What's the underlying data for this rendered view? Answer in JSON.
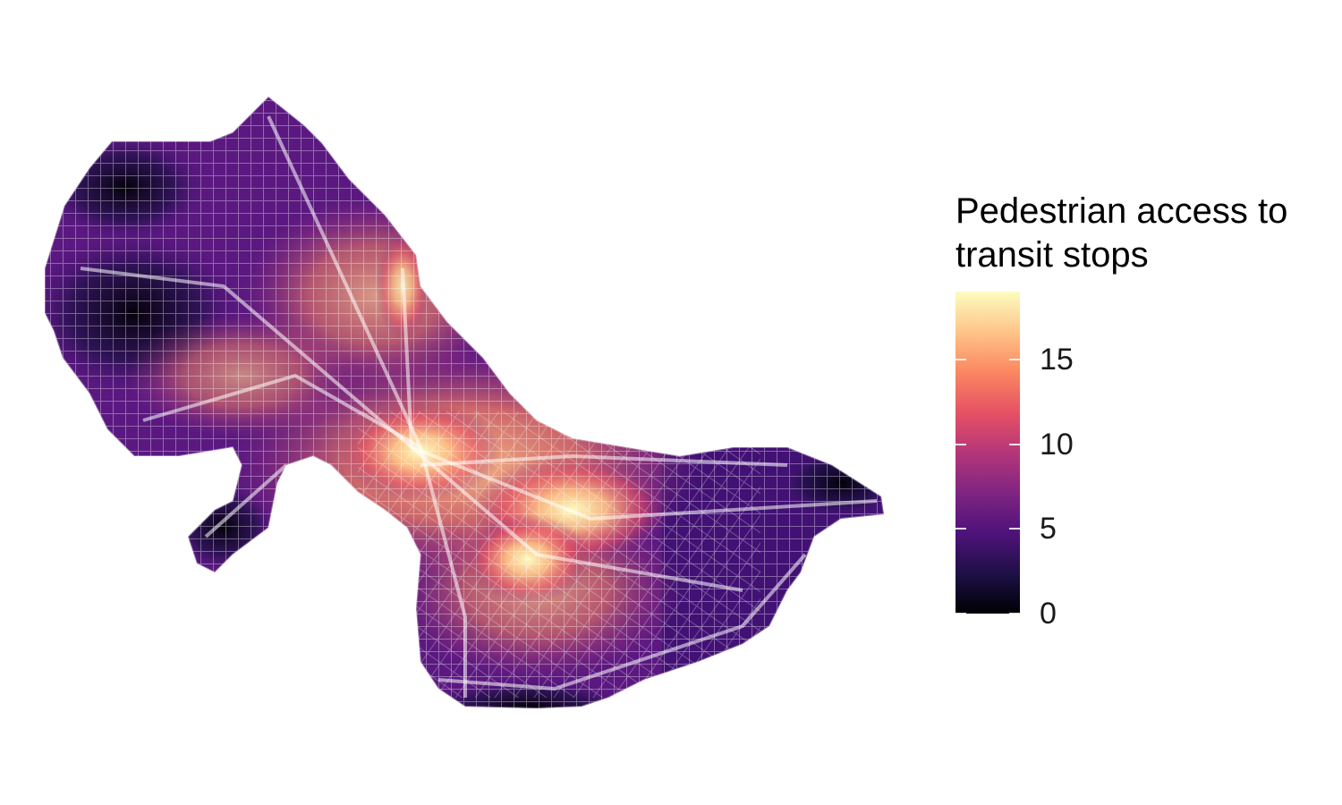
{
  "map": {
    "name": "Pedestrian access to transit stops raster map",
    "palette": [
      "#000004",
      "#1c1044",
      "#4f127b",
      "#812581",
      "#b5367a",
      "#e55064",
      "#fb8761",
      "#fec287",
      "#fcfdbf"
    ],
    "street_color": "#ffffff"
  },
  "legend": {
    "title_line1": "Pedestrian access to",
    "title_line2": "transit stops",
    "min": 0,
    "max": 19,
    "ticks": [
      {
        "value": 0,
        "label": "0"
      },
      {
        "value": 5,
        "label": "5"
      },
      {
        "value": 10,
        "label": "10"
      },
      {
        "value": 15,
        "label": "15"
      }
    ]
  }
}
